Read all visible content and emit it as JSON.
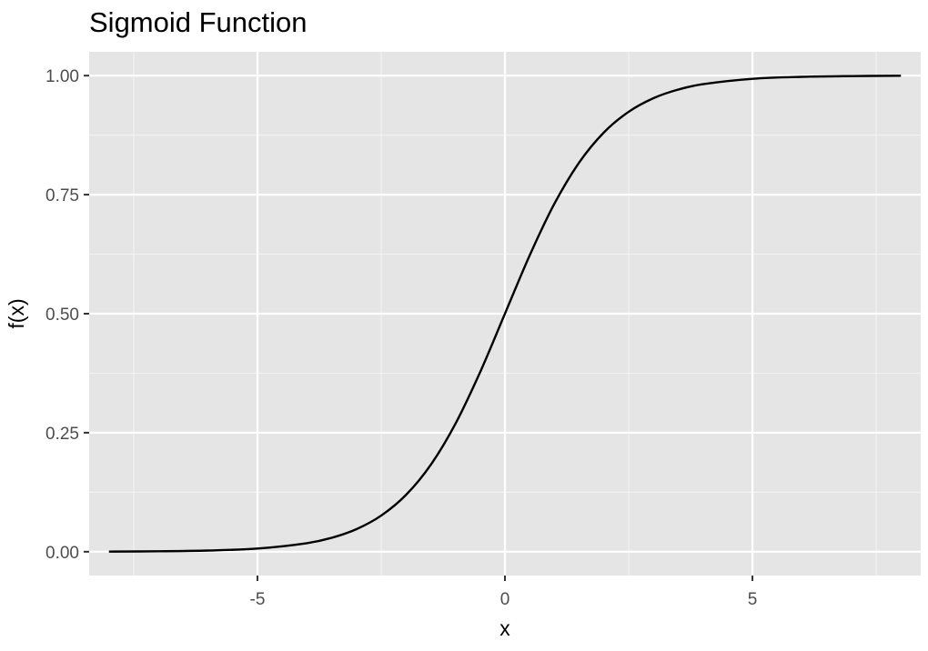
{
  "chart_data": {
    "type": "line",
    "title": "Sigmoid Function",
    "xlabel": "x",
    "ylabel": "f(x)",
    "xlim": [
      -8.4,
      8.4
    ],
    "ylim": [
      -0.05,
      1.05
    ],
    "x_ticks": [
      -5,
      0,
      5
    ],
    "x_tick_labels": [
      "-5",
      "0",
      "5"
    ],
    "y_ticks": [
      0,
      0.25,
      0.5,
      0.75,
      1
    ],
    "y_tick_labels": [
      "0.00",
      "0.25",
      "0.50",
      "0.75",
      "1.00"
    ],
    "grid": true,
    "series": [
      {
        "x": [
          -8,
          -7,
          -6,
          -5,
          -4,
          -3.5,
          -3,
          -2.5,
          -2,
          -1.5,
          -1,
          -0.5,
          0,
          0.5,
          1,
          1.5,
          2,
          2.5,
          3,
          3.5,
          4,
          5,
          6,
          7,
          8
        ],
        "values": [
          0.0003,
          0.0009,
          0.0025,
          0.0067,
          0.018,
          0.0293,
          0.0474,
          0.0759,
          0.1192,
          0.1824,
          0.2689,
          0.3775,
          0.5,
          0.6225,
          0.7311,
          0.8176,
          0.8808,
          0.9241,
          0.9526,
          0.9707,
          0.982,
          0.9933,
          0.9975,
          0.9991,
          0.9997
        ]
      }
    ],
    "colors": {
      "panel_background": "#e5e5e5",
      "grid_major": "#ffffff",
      "grid_minor": "#f2f2f2",
      "line": "#000000"
    }
  }
}
